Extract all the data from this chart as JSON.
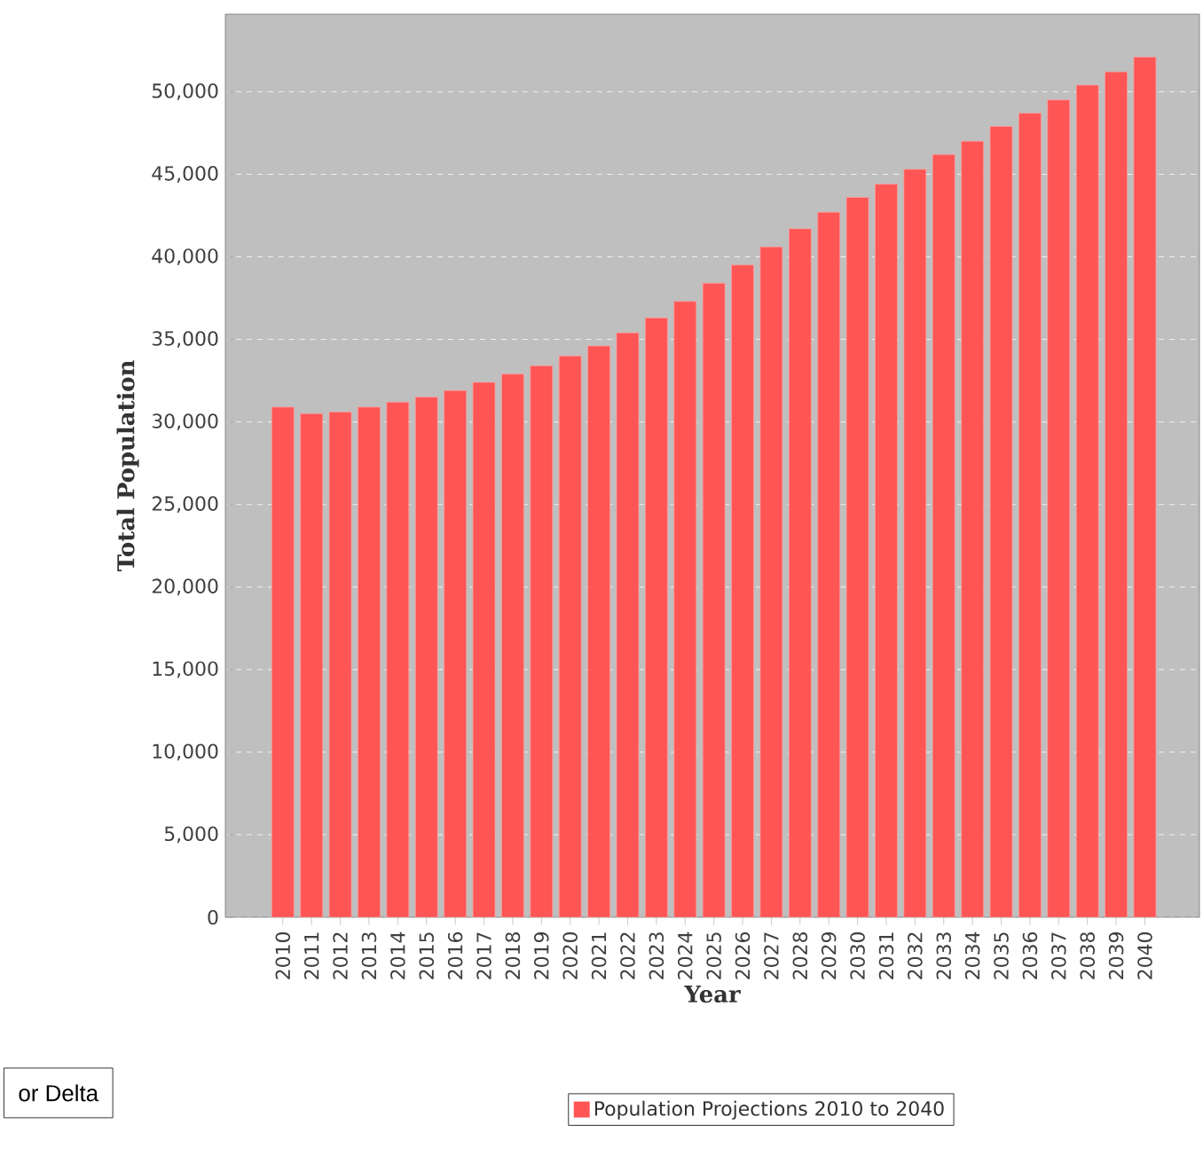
{
  "chart_data": {
    "type": "bar",
    "xlabel": "Year",
    "ylabel": "Total Population",
    "categories": [
      "2010",
      "2011",
      "2012",
      "2013",
      "2014",
      "2015",
      "2016",
      "2017",
      "2018",
      "2019",
      "2020",
      "2021",
      "2022",
      "2023",
      "2024",
      "2025",
      "2026",
      "2027",
      "2028",
      "2029",
      "2030",
      "2031",
      "2032",
      "2033",
      "2034",
      "2035",
      "2036",
      "2037",
      "2038",
      "2039",
      "2040"
    ],
    "series": [
      {
        "name": "Population Projections 2010 to 2040",
        "color": "#ff5555",
        "values": [
          30900,
          30500,
          30600,
          30900,
          31200,
          31500,
          31900,
          32400,
          32900,
          33400,
          34000,
          34600,
          35400,
          36300,
          37300,
          38400,
          39500,
          40600,
          41700,
          42700,
          43600,
          44400,
          45300,
          46200,
          47000,
          47900,
          48700,
          49500,
          50400,
          51200,
          52100
        ]
      }
    ],
    "ylim": [
      0,
      54700
    ],
    "yticks": [
      0,
      {
        "value": 5000,
        "label": "5,000"
      },
      {
        "value": 10000,
        "label": "10,000"
      },
      {
        "value": 15000,
        "label": "15,000"
      },
      {
        "value": 20000,
        "label": "20,000"
      },
      {
        "value": 25000,
        "label": "25,000"
      },
      {
        "value": 30000,
        "label": "30,000"
      },
      {
        "value": 35000,
        "label": "35,000"
      },
      {
        "value": 40000,
        "label": "40,000"
      },
      {
        "value": 45000,
        "label": "45,000"
      },
      {
        "value": 50000,
        "label": "50,000"
      }
    ],
    "grid": "y",
    "legend": "bottom",
    "annotations": [
      "or Delta"
    ]
  }
}
